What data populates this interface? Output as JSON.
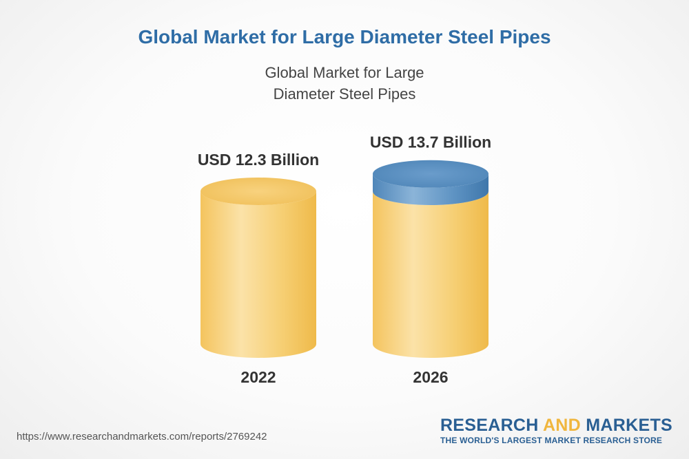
{
  "chart_data": {
    "type": "bar",
    "title": "Global Market for Large Diameter Steel Pipes",
    "subtitle_lines": [
      "Global Market for Large",
      "Diameter Steel Pipes"
    ],
    "categories": [
      "2022",
      "2026"
    ],
    "values": [
      12.3,
      13.7
    ],
    "data_labels": [
      "USD 12.3 Billion",
      "USD 13.7 Billion"
    ],
    "unit": "USD Billion",
    "colors": {
      "base": "#f2c15a",
      "growth": "#5a8fbf"
    }
  },
  "footer": {
    "source_url": "https://www.researchandmarkets.com/reports/2769242",
    "logo_part1": "RESEARCH ",
    "logo_part2": "AND",
    "logo_part3": " MARKETS",
    "logo_tagline": "THE WORLD'S LARGEST MARKET RESEARCH STORE"
  }
}
